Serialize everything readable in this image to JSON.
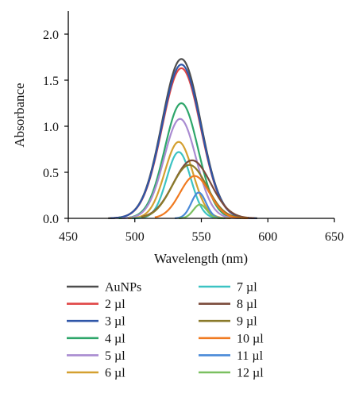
{
  "chart_data": {
    "type": "line",
    "title": "",
    "xlabel": "Wavelength (nm)",
    "ylabel": "Absorbance",
    "xlim": [
      450,
      650
    ],
    "ylim": [
      0,
      2.25
    ],
    "xticks": [
      450,
      500,
      550,
      600,
      650
    ],
    "yticks": [
      0.0,
      0.5,
      1.0,
      1.5,
      2.0
    ],
    "xtick_labels": [
      "450",
      "500",
      "550",
      "600",
      "650"
    ],
    "ytick_labels": [
      "0.0",
      "0.5",
      "1.0",
      "1.5",
      "2.0"
    ],
    "grid": false,
    "legend_position": "bottom",
    "series": [
      {
        "name": "AuNPs",
        "color": "#4d4d4d",
        "peak_x": 535,
        "peak_y": 1.73,
        "width": 14.5,
        "x_start": 480,
        "x_end": 592
      },
      {
        "name": "2 µl",
        "color": "#e04646",
        "peak_x": 535,
        "peak_y": 1.63,
        "width": 14.5,
        "x_start": 483,
        "x_end": 590
      },
      {
        "name": "3 µl",
        "color": "#2f56a8",
        "peak_x": 535,
        "peak_y": 1.67,
        "width": 14.5,
        "x_start": 482,
        "x_end": 591
      },
      {
        "name": "4 µl",
        "color": "#2ea66a",
        "peak_x": 535,
        "peak_y": 1.25,
        "width": 12.5,
        "x_start": 488,
        "x_end": 580
      },
      {
        "name": "5 µl",
        "color": "#a98bd1",
        "peak_x": 534,
        "peak_y": 1.08,
        "width": 12.0,
        "x_start": 490,
        "x_end": 578
      },
      {
        "name": "6 µl",
        "color": "#d4a030",
        "peak_x": 533,
        "peak_y": 0.83,
        "width": 10.5,
        "x_start": 495,
        "x_end": 572
      },
      {
        "name": "7 µl",
        "color": "#3cc3c3",
        "peak_x": 533,
        "peak_y": 0.72,
        "width": 9.0,
        "x_start": 498,
        "x_end": 567
      },
      {
        "name": "8 µl",
        "color": "#7a4a3a",
        "peak_x": 543,
        "peak_y": 0.63,
        "width": 14.0,
        "x_start": 505,
        "x_end": 590
      },
      {
        "name": "9 µl",
        "color": "#8a7a2a",
        "peak_x": 541,
        "peak_y": 0.58,
        "width": 13.0,
        "x_start": 505,
        "x_end": 585
      },
      {
        "name": "10 µl",
        "color": "#f07a20",
        "peak_x": 545,
        "peak_y": 0.46,
        "width": 11.0,
        "x_start": 515,
        "x_end": 585
      },
      {
        "name": "11 µl",
        "color": "#4a8ad8",
        "peak_x": 548,
        "peak_y": 0.28,
        "width": 5.5,
        "x_start": 530,
        "x_end": 568
      },
      {
        "name": "12 µl",
        "color": "#7ac060",
        "peak_x": 549,
        "peak_y": 0.15,
        "width": 5.0,
        "x_start": 533,
        "x_end": 567
      }
    ]
  }
}
